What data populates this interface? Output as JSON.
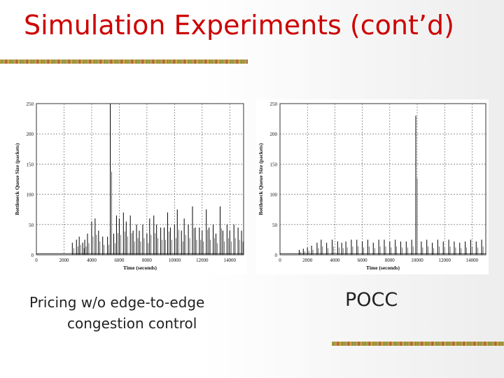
{
  "slide": {
    "title": "Simulation Experiments (cont’d)",
    "caption_left_line1": "Pricing w/o edge-to-edge",
    "caption_left_line2": "congestion control",
    "caption_right": "POCC",
    "colors": {
      "title": "#cc0000",
      "rule_a": "#b8860b",
      "rule_b": "#6b8e23"
    }
  },
  "chart_data": [
    {
      "type": "line",
      "title": "",
      "xlabel": "Time (seconds)",
      "ylabel": "Bottleneck Queue Size (packets)",
      "xlim": [
        0,
        15000
      ],
      "ylim": [
        0,
        250
      ],
      "xticks": [
        0,
        2000,
        4000,
        6000,
        8000,
        10000,
        12000,
        14000
      ],
      "yticks": [
        0,
        50,
        100,
        150,
        200,
        250
      ],
      "grid": true,
      "series": [
        {
          "name": "Pricing w/o edge-to-edge congestion control",
          "baseline": 2,
          "spikes": [
            {
              "t": 2600,
              "q": 20
            },
            {
              "t": 2900,
              "q": 25
            },
            {
              "t": 3100,
              "q": 30
            },
            {
              "t": 3350,
              "q": 20
            },
            {
              "t": 3500,
              "q": 25
            },
            {
              "t": 3700,
              "q": 35
            },
            {
              "t": 4000,
              "q": 55
            },
            {
              "t": 4250,
              "q": 60
            },
            {
              "t": 4500,
              "q": 40
            },
            {
              "t": 4800,
              "q": 30
            },
            {
              "t": 5150,
              "q": 30
            },
            {
              "t": 5350,
              "q": 250
            },
            {
              "t": 5600,
              "q": 35
            },
            {
              "t": 5800,
              "q": 65
            },
            {
              "t": 6000,
              "q": 60
            },
            {
              "t": 6300,
              "q": 70
            },
            {
              "t": 6500,
              "q": 55
            },
            {
              "t": 6800,
              "q": 65
            },
            {
              "t": 7000,
              "q": 40
            },
            {
              "t": 7250,
              "q": 50
            },
            {
              "t": 7450,
              "q": 40
            },
            {
              "t": 7700,
              "q": 50
            },
            {
              "t": 8000,
              "q": 35
            },
            {
              "t": 8200,
              "q": 60
            },
            {
              "t": 8500,
              "q": 65
            },
            {
              "t": 8700,
              "q": 50
            },
            {
              "t": 9000,
              "q": 45
            },
            {
              "t": 9250,
              "q": 45
            },
            {
              "t": 9500,
              "q": 70
            },
            {
              "t": 9700,
              "q": 45
            },
            {
              "t": 10000,
              "q": 50
            },
            {
              "t": 10200,
              "q": 75
            },
            {
              "t": 10500,
              "q": 40
            },
            {
              "t": 10700,
              "q": 60
            },
            {
              "t": 11000,
              "q": 50
            },
            {
              "t": 11300,
              "q": 80
            },
            {
              "t": 11500,
              "q": 45
            },
            {
              "t": 11800,
              "q": 45
            },
            {
              "t": 12000,
              "q": 40
            },
            {
              "t": 12300,
              "q": 75
            },
            {
              "t": 12500,
              "q": 45
            },
            {
              "t": 12800,
              "q": 50
            },
            {
              "t": 13000,
              "q": 35
            },
            {
              "t": 13300,
              "q": 80
            },
            {
              "t": 13500,
              "q": 40
            },
            {
              "t": 13800,
              "q": 50
            },
            {
              "t": 14000,
              "q": 40
            },
            {
              "t": 14300,
              "q": 50
            },
            {
              "t": 14600,
              "q": 45
            },
            {
              "t": 14850,
              "q": 40
            }
          ]
        }
      ]
    },
    {
      "type": "line",
      "title": "",
      "xlabel": "Time (seconds)",
      "ylabel": "Bottleneck Queue Size (packets)",
      "xlim": [
        0,
        15000
      ],
      "ylim": [
        0,
        250
      ],
      "xticks": [
        0,
        2000,
        4000,
        6000,
        8000,
        10000,
        12000,
        14000
      ],
      "yticks": [
        0,
        50,
        100,
        150,
        200,
        250
      ],
      "grid": true,
      "series": [
        {
          "name": "POCC",
          "baseline": 2,
          "spikes": [
            {
              "t": 1400,
              "q": 8
            },
            {
              "t": 1700,
              "q": 10
            },
            {
              "t": 2000,
              "q": 12
            },
            {
              "t": 2300,
              "q": 15
            },
            {
              "t": 2700,
              "q": 20
            },
            {
              "t": 3000,
              "q": 25
            },
            {
              "t": 3400,
              "q": 20
            },
            {
              "t": 3800,
              "q": 25
            },
            {
              "t": 4200,
              "q": 22
            },
            {
              "t": 4500,
              "q": 20
            },
            {
              "t": 4800,
              "q": 22
            },
            {
              "t": 5200,
              "q": 25
            },
            {
              "t": 5600,
              "q": 25
            },
            {
              "t": 6000,
              "q": 22
            },
            {
              "t": 6400,
              "q": 25
            },
            {
              "t": 6800,
              "q": 20
            },
            {
              "t": 7200,
              "q": 25
            },
            {
              "t": 7600,
              "q": 25
            },
            {
              "t": 8000,
              "q": 22
            },
            {
              "t": 8400,
              "q": 25
            },
            {
              "t": 8800,
              "q": 22
            },
            {
              "t": 9200,
              "q": 22
            },
            {
              "t": 9600,
              "q": 25
            },
            {
              "t": 9900,
              "q": 230
            },
            {
              "t": 10300,
              "q": 22
            },
            {
              "t": 10700,
              "q": 25
            },
            {
              "t": 11100,
              "q": 20
            },
            {
              "t": 11500,
              "q": 25
            },
            {
              "t": 11900,
              "q": 22
            },
            {
              "t": 12300,
              "q": 25
            },
            {
              "t": 12700,
              "q": 22
            },
            {
              "t": 13100,
              "q": 20
            },
            {
              "t": 13500,
              "q": 22
            },
            {
              "t": 13900,
              "q": 25
            },
            {
              "t": 14300,
              "q": 22
            },
            {
              "t": 14700,
              "q": 25
            }
          ]
        }
      ]
    }
  ]
}
